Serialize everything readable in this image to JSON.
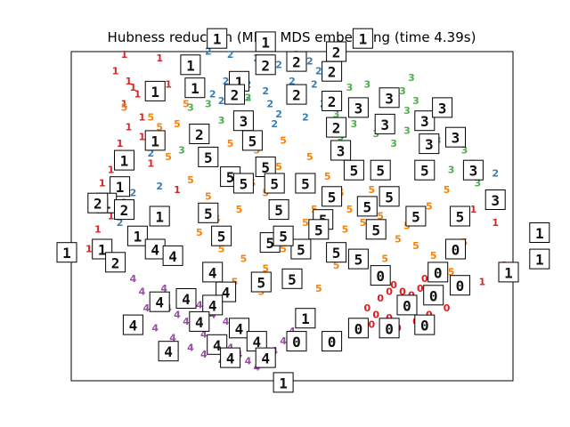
{
  "chart_data": {
    "type": "scatter",
    "title": "Hubness reduction (MP) - MDS embedding (time 4.39s)",
    "xlabel": "",
    "ylabel": "",
    "xlim": [
      0,
      100
    ],
    "ylim": [
      0,
      100
    ],
    "grid": false,
    "legend": "none",
    "axis_ticks": "hidden",
    "colors": {
      "0": "#e41a1c",
      "1": "#d62728",
      "2": "#377eb8",
      "3": "#4daf4a",
      "4": "#984ea3",
      "5": "#ff7f00"
    },
    "series": [
      {
        "label": "0",
        "points": [
          [
            71,
            31
          ],
          [
            73,
            29
          ],
          [
            75,
            27
          ],
          [
            77,
            26
          ],
          [
            79,
            28
          ],
          [
            76,
            22
          ],
          [
            78,
            18
          ],
          [
            74,
            16
          ],
          [
            72,
            19
          ],
          [
            69,
            20
          ],
          [
            67,
            22
          ],
          [
            70,
            25
          ],
          [
            80,
            31
          ],
          [
            83,
            24
          ],
          [
            81,
            20
          ],
          [
            85,
            22
          ],
          [
            72,
            27
          ],
          [
            68,
            17
          ]
        ]
      },
      {
        "label": "1",
        "points": [
          [
            10,
            94
          ],
          [
            13,
            91
          ],
          [
            15,
            87
          ],
          [
            12,
            84
          ],
          [
            16,
            80
          ],
          [
            13,
            77
          ],
          [
            11,
            72
          ],
          [
            11,
            68
          ],
          [
            9,
            64
          ],
          [
            7,
            60
          ],
          [
            10,
            58
          ],
          [
            12,
            54
          ],
          [
            9,
            50
          ],
          [
            6,
            46
          ],
          [
            8,
            40
          ],
          [
            14,
            89
          ],
          [
            16,
            74
          ],
          [
            18,
            66
          ],
          [
            5,
            53
          ],
          [
            4,
            40
          ],
          [
            24,
            58
          ],
          [
            98,
            35
          ],
          [
            96,
            48
          ],
          [
            91,
            52
          ],
          [
            93,
            30
          ],
          [
            22,
            90
          ],
          [
            12,
            99
          ],
          [
            20,
            98
          ]
        ]
      },
      {
        "label": "2",
        "points": [
          [
            31,
            100
          ],
          [
            36,
            99
          ],
          [
            42,
            98
          ],
          [
            47,
            96
          ],
          [
            51,
            99
          ],
          [
            54,
            97
          ],
          [
            56,
            94
          ],
          [
            50,
            91
          ],
          [
            44,
            88
          ],
          [
            40,
            90
          ],
          [
            35,
            91
          ],
          [
            28,
            97
          ],
          [
            34,
            85
          ],
          [
            40,
            86
          ],
          [
            45,
            84
          ],
          [
            52,
            86
          ],
          [
            57,
            84
          ],
          [
            53,
            80
          ],
          [
            46,
            78
          ],
          [
            38,
            80
          ],
          [
            32,
            87
          ],
          [
            14,
            57
          ],
          [
            11,
            48
          ],
          [
            96,
            63
          ],
          [
            20,
            59
          ],
          [
            55,
            90
          ],
          [
            18,
            69
          ],
          [
            47,
            81
          ]
        ]
      },
      {
        "label": "3",
        "points": [
          [
            63,
            89
          ],
          [
            67,
            90
          ],
          [
            71,
            86
          ],
          [
            75,
            88
          ],
          [
            78,
            85
          ],
          [
            76,
            82
          ],
          [
            72,
            79
          ],
          [
            69,
            75
          ],
          [
            64,
            78
          ],
          [
            60,
            81
          ],
          [
            58,
            86
          ],
          [
            66,
            83
          ],
          [
            73,
            72
          ],
          [
            76,
            76
          ],
          [
            80,
            78
          ],
          [
            83,
            73
          ],
          [
            86,
            64
          ],
          [
            89,
            70
          ],
          [
            91,
            66
          ],
          [
            92,
            60
          ],
          [
            27,
            83
          ],
          [
            31,
            84
          ],
          [
            34,
            79
          ],
          [
            28,
            73
          ],
          [
            25,
            70
          ],
          [
            84,
            81
          ],
          [
            77,
            92
          ],
          [
            61,
            74
          ],
          [
            40,
            86
          ]
        ]
      },
      {
        "label": "4",
        "points": [
          [
            14,
            31
          ],
          [
            16,
            27
          ],
          [
            19,
            25
          ],
          [
            22,
            22
          ],
          [
            24,
            20
          ],
          [
            26,
            18
          ],
          [
            28,
            16
          ],
          [
            30,
            14
          ],
          [
            33,
            12
          ],
          [
            36,
            10
          ],
          [
            38,
            8
          ],
          [
            40,
            6
          ],
          [
            42,
            4
          ],
          [
            44,
            7
          ],
          [
            46,
            9
          ],
          [
            48,
            12
          ],
          [
            50,
            15
          ],
          [
            21,
            28
          ],
          [
            25,
            26
          ],
          [
            29,
            23
          ],
          [
            32,
            20
          ],
          [
            35,
            18
          ],
          [
            17,
            22
          ],
          [
            19,
            16
          ],
          [
            23,
            13
          ],
          [
            27,
            10
          ],
          [
            30,
            8
          ],
          [
            34,
            6
          ]
        ]
      },
      {
        "label": "5",
        "points": [
          [
            12,
            83
          ],
          [
            18,
            80
          ],
          [
            24,
            78
          ],
          [
            30,
            75
          ],
          [
            36,
            72
          ],
          [
            42,
            70
          ],
          [
            48,
            73
          ],
          [
            54,
            68
          ],
          [
            58,
            62
          ],
          [
            61,
            57
          ],
          [
            63,
            52
          ],
          [
            66,
            48
          ],
          [
            70,
            44
          ],
          [
            74,
            43
          ],
          [
            78,
            41
          ],
          [
            82,
            38
          ],
          [
            86,
            33
          ],
          [
            89,
            42
          ],
          [
            47,
            65
          ],
          [
            52,
            59
          ],
          [
            44,
            57
          ],
          [
            38,
            52
          ],
          [
            33,
            49
          ],
          [
            29,
            45
          ],
          [
            34,
            40
          ],
          [
            39,
            37
          ],
          [
            44,
            34
          ],
          [
            50,
            30
          ],
          [
            56,
            28
          ],
          [
            60,
            35
          ],
          [
            65,
            38
          ],
          [
            70,
            50
          ],
          [
            76,
            47
          ],
          [
            81,
            53
          ],
          [
            22,
            68
          ],
          [
            27,
            61
          ],
          [
            31,
            56
          ],
          [
            35,
            63
          ],
          [
            41,
            60
          ],
          [
            46,
            51
          ],
          [
            53,
            48
          ],
          [
            57,
            44
          ],
          [
            64,
            62
          ],
          [
            68,
            58
          ],
          [
            73,
            55
          ],
          [
            79,
            62
          ],
          [
            85,
            58
          ],
          [
            20,
            77
          ],
          [
            26,
            84
          ],
          [
            37,
            30
          ],
          [
            43,
            27
          ],
          [
            48,
            40
          ],
          [
            55,
            52
          ],
          [
            62,
            46
          ],
          [
            71,
            37
          ]
        ]
      }
    ],
    "thumbnails": [
      {
        "label": "1",
        "x": 27,
        "y": 96
      },
      {
        "label": "1",
        "x": 19,
        "y": 88
      },
      {
        "label": "1",
        "x": 28,
        "y": 89
      },
      {
        "label": "1",
        "x": 38,
        "y": 91
      },
      {
        "label": "1",
        "x": 33,
        "y": 104
      },
      {
        "label": "1",
        "x": 44,
        "y": 103
      },
      {
        "label": "1",
        "x": 66,
        "y": 104
      },
      {
        "label": "1",
        "x": 19,
        "y": 73
      },
      {
        "label": "1",
        "x": 12,
        "y": 67
      },
      {
        "label": "1",
        "x": 11,
        "y": 59
      },
      {
        "label": "1",
        "x": 8,
        "y": 54
      },
      {
        "label": "1",
        "x": 15,
        "y": 44
      },
      {
        "label": "1",
        "x": 7,
        "y": 40
      },
      {
        "label": "1",
        "x": -1,
        "y": 39
      },
      {
        "label": "1",
        "x": 106,
        "y": 45
      },
      {
        "label": "1",
        "x": 99,
        "y": 33
      },
      {
        "label": "1",
        "x": 106,
        "y": 37
      },
      {
        "label": "1",
        "x": 53,
        "y": 19
      },
      {
        "label": "1",
        "x": 48,
        "y": -0.5
      },
      {
        "label": "1",
        "x": 20,
        "y": 50
      },
      {
        "label": "2",
        "x": 44,
        "y": 96
      },
      {
        "label": "2",
        "x": 51,
        "y": 97
      },
      {
        "label": "2",
        "x": 60,
        "y": 100
      },
      {
        "label": "2",
        "x": 59,
        "y": 94
      },
      {
        "label": "2",
        "x": 37,
        "y": 87
      },
      {
        "label": "2",
        "x": 51,
        "y": 87
      },
      {
        "label": "2",
        "x": 59,
        "y": 85
      },
      {
        "label": "2",
        "x": 60,
        "y": 77
      },
      {
        "label": "2",
        "x": 29,
        "y": 75
      },
      {
        "label": "2",
        "x": 12,
        "y": 52
      },
      {
        "label": "2",
        "x": 10,
        "y": 36
      },
      {
        "label": "2",
        "x": 6,
        "y": 54
      },
      {
        "label": "3",
        "x": 39,
        "y": 79
      },
      {
        "label": "3",
        "x": 65,
        "y": 83
      },
      {
        "label": "3",
        "x": 72,
        "y": 86
      },
      {
        "label": "3",
        "x": 71,
        "y": 78
      },
      {
        "label": "3",
        "x": 80,
        "y": 79
      },
      {
        "label": "3",
        "x": 84,
        "y": 83
      },
      {
        "label": "3",
        "x": 81,
        "y": 72
      },
      {
        "label": "3",
        "x": 87,
        "y": 74
      },
      {
        "label": "3",
        "x": 61,
        "y": 70
      },
      {
        "label": "3",
        "x": 91,
        "y": 64
      },
      {
        "label": "3",
        "x": 96,
        "y": 55
      },
      {
        "label": "4",
        "x": 19,
        "y": 40
      },
      {
        "label": "4",
        "x": 23,
        "y": 38
      },
      {
        "label": "4",
        "x": 32,
        "y": 33
      },
      {
        "label": "4",
        "x": 35,
        "y": 27
      },
      {
        "label": "4",
        "x": 32,
        "y": 23
      },
      {
        "label": "4",
        "x": 20,
        "y": 24
      },
      {
        "label": "4",
        "x": 26,
        "y": 25
      },
      {
        "label": "4",
        "x": 14,
        "y": 17
      },
      {
        "label": "4",
        "x": 29,
        "y": 18
      },
      {
        "label": "4",
        "x": 38,
        "y": 16
      },
      {
        "label": "4",
        "x": 33,
        "y": 11
      },
      {
        "label": "4",
        "x": 42,
        "y": 12
      },
      {
        "label": "4",
        "x": 36,
        "y": 7
      },
      {
        "label": "4",
        "x": 44,
        "y": 7
      },
      {
        "label": "4",
        "x": 22,
        "y": 9
      },
      {
        "label": "5",
        "x": 31,
        "y": 68
      },
      {
        "label": "5",
        "x": 41,
        "y": 73
      },
      {
        "label": "5",
        "x": 36,
        "y": 62
      },
      {
        "label": "5",
        "x": 44,
        "y": 65
      },
      {
        "label": "5",
        "x": 46,
        "y": 60
      },
      {
        "label": "5",
        "x": 53,
        "y": 60
      },
      {
        "label": "5",
        "x": 59,
        "y": 56
      },
      {
        "label": "5",
        "x": 64,
        "y": 64
      },
      {
        "label": "5",
        "x": 70,
        "y": 64
      },
      {
        "label": "5",
        "x": 80,
        "y": 64
      },
      {
        "label": "5",
        "x": 72,
        "y": 56
      },
      {
        "label": "5",
        "x": 78,
        "y": 50
      },
      {
        "label": "5",
        "x": 88,
        "y": 50
      },
      {
        "label": "5",
        "x": 39,
        "y": 60
      },
      {
        "label": "5",
        "x": 47,
        "y": 52
      },
      {
        "label": "5",
        "x": 57,
        "y": 49
      },
      {
        "label": "5",
        "x": 67,
        "y": 53
      },
      {
        "label": "5",
        "x": 34,
        "y": 44
      },
      {
        "label": "5",
        "x": 56,
        "y": 46
      },
      {
        "label": "5",
        "x": 31,
        "y": 51
      },
      {
        "label": "5",
        "x": 45,
        "y": 42
      },
      {
        "label": "5",
        "x": 52,
        "y": 40
      },
      {
        "label": "5",
        "x": 60,
        "y": 39
      },
      {
        "label": "5",
        "x": 69,
        "y": 46
      },
      {
        "label": "5",
        "x": 65,
        "y": 37
      },
      {
        "label": "5",
        "x": 43,
        "y": 30
      },
      {
        "label": "5",
        "x": 50,
        "y": 31
      },
      {
        "label": "5",
        "x": 48,
        "y": 44
      },
      {
        "label": "0",
        "x": 70,
        "y": 32
      },
      {
        "label": "0",
        "x": 83,
        "y": 33
      },
      {
        "label": "0",
        "x": 87,
        "y": 40
      },
      {
        "label": "0",
        "x": 82,
        "y": 26
      },
      {
        "label": "0",
        "x": 76,
        "y": 23
      },
      {
        "label": "0",
        "x": 88,
        "y": 29
      },
      {
        "label": "0",
        "x": 80,
        "y": 17
      },
      {
        "label": "0",
        "x": 72,
        "y": 16
      },
      {
        "label": "0",
        "x": 65,
        "y": 16
      },
      {
        "label": "0",
        "x": 59,
        "y": 12
      },
      {
        "label": "0",
        "x": 51,
        "y": 12
      }
    ]
  }
}
